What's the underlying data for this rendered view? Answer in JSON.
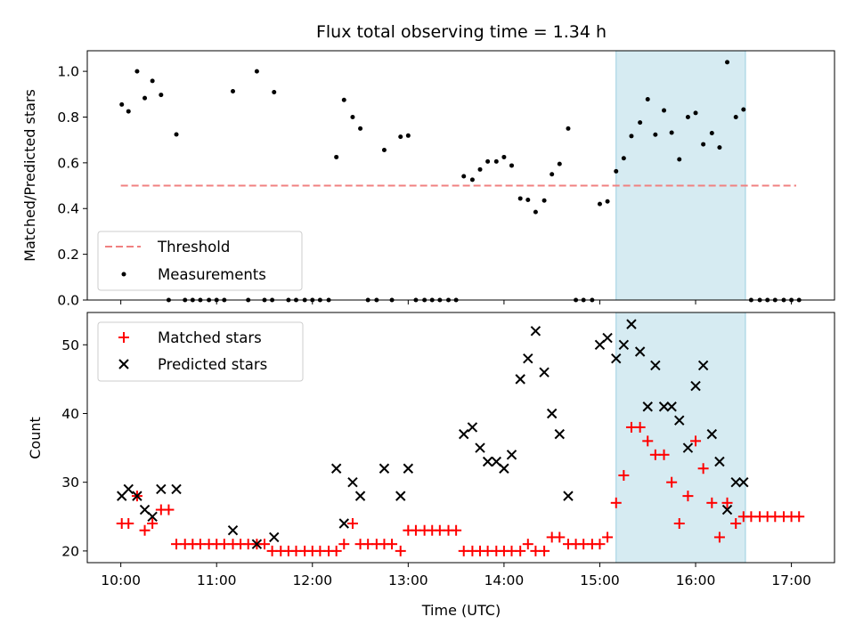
{
  "chart_data": [
    {
      "type": "scatter",
      "title": "Flux total observing time = 1.34 h",
      "ylabel": "Matched/Predicted stars",
      "xlabel": "",
      "xlim": [
        9.65,
        17.45
      ],
      "ylim": [
        0.0,
        1.09
      ],
      "yticks": [
        0.0,
        0.2,
        0.4,
        0.6,
        0.8,
        1.0
      ],
      "ytick_labels": [
        "0.0",
        "0.2",
        "0.4",
        "0.6",
        "0.8",
        "1.0"
      ],
      "shaded_region": [
        15.17,
        16.52
      ],
      "shade_color": "#add8e6",
      "threshold": {
        "label": "Threshold",
        "value": 0.5,
        "x_range": [
          10.0,
          17.05
        ],
        "color": "#f08080"
      },
      "measurements_label": "Measurements",
      "measurements": [
        [
          10.01,
          0.855
        ],
        [
          10.08,
          0.825
        ],
        [
          10.17,
          1.0
        ],
        [
          10.25,
          0.883
        ],
        [
          10.33,
          0.958
        ],
        [
          10.42,
          0.897
        ],
        [
          10.58,
          0.724
        ],
        [
          10.5,
          0.0
        ],
        [
          10.67,
          0.0
        ],
        [
          10.75,
          0.0
        ],
        [
          10.83,
          0.0
        ],
        [
          10.92,
          0.0
        ],
        [
          11.0,
          0.0
        ],
        [
          11.08,
          0.0
        ],
        [
          11.17,
          0.913
        ],
        [
          11.33,
          0.0
        ],
        [
          11.42,
          1.0
        ],
        [
          11.58,
          0.0
        ],
        [
          11.5,
          0.0
        ],
        [
          11.6,
          0.909
        ],
        [
          11.75,
          0.0
        ],
        [
          11.83,
          0.0
        ],
        [
          11.92,
          0.0
        ],
        [
          12.0,
          0.0
        ],
        [
          12.08,
          0.0
        ],
        [
          12.17,
          0.0
        ],
        [
          12.25,
          0.625
        ],
        [
          12.33,
          0.875
        ],
        [
          12.42,
          0.8
        ],
        [
          12.5,
          0.75
        ],
        [
          12.58,
          0.0
        ],
        [
          12.67,
          0.0
        ],
        [
          12.75,
          0.656
        ],
        [
          12.83,
          0.0
        ],
        [
          12.92,
          0.714
        ],
        [
          13.0,
          0.719
        ],
        [
          13.08,
          0.0
        ],
        [
          13.17,
          0.0
        ],
        [
          13.25,
          0.0
        ],
        [
          13.33,
          0.0
        ],
        [
          13.42,
          0.0
        ],
        [
          13.5,
          0.0
        ],
        [
          13.58,
          0.541
        ],
        [
          13.67,
          0.526
        ],
        [
          13.75,
          0.571
        ],
        [
          13.83,
          0.606
        ],
        [
          13.92,
          0.606
        ],
        [
          14.0,
          0.625
        ],
        [
          14.08,
          0.588
        ],
        [
          14.17,
          0.444
        ],
        [
          14.25,
          0.438
        ],
        [
          14.33,
          0.385
        ],
        [
          14.42,
          0.435
        ],
        [
          14.5,
          0.55
        ],
        [
          14.58,
          0.595
        ],
        [
          14.67,
          0.75
        ],
        [
          14.75,
          0.0
        ],
        [
          14.83,
          0.0
        ],
        [
          14.92,
          0.0
        ],
        [
          15.0,
          0.42
        ],
        [
          15.08,
          0.431
        ],
        [
          15.17,
          0.563
        ],
        [
          15.25,
          0.62
        ],
        [
          15.33,
          0.717
        ],
        [
          15.42,
          0.776
        ],
        [
          15.5,
          0.878
        ],
        [
          15.58,
          0.723
        ],
        [
          15.67,
          0.829
        ],
        [
          15.75,
          0.732
        ],
        [
          15.83,
          0.615
        ],
        [
          15.92,
          0.8
        ],
        [
          16.0,
          0.818
        ],
        [
          16.08,
          0.681
        ],
        [
          16.17,
          0.73
        ],
        [
          16.25,
          0.667
        ],
        [
          16.33,
          1.04
        ],
        [
          16.42,
          0.8
        ],
        [
          16.5,
          0.833
        ],
        [
          16.58,
          0.0
        ],
        [
          16.67,
          0.0
        ],
        [
          16.75,
          0.0
        ],
        [
          16.83,
          0.0
        ],
        [
          16.92,
          0.0
        ],
        [
          17.0,
          0.0
        ],
        [
          17.08,
          0.0
        ]
      ]
    },
    {
      "type": "scatter",
      "title": "",
      "xlabel": "Time (UTC)",
      "ylabel": "Count",
      "xlim": [
        9.65,
        17.45
      ],
      "ylim": [
        18.3,
        54.7
      ],
      "yticks": [
        20,
        30,
        40,
        50
      ],
      "ytick_labels": [
        "20",
        "30",
        "40",
        "50"
      ],
      "xticks": [
        10,
        11,
        12,
        13,
        14,
        15,
        16,
        17
      ],
      "xtick_labels": [
        "10:00",
        "11:00",
        "12:00",
        "13:00",
        "14:00",
        "15:00",
        "16:00",
        "17:00"
      ],
      "shaded_region": [
        15.17,
        16.52
      ],
      "shade_color": "#add8e6",
      "series": [
        {
          "name": "Matched stars",
          "marker": "+",
          "color": "#ff0000",
          "points": [
            [
              10.01,
              24
            ],
            [
              10.08,
              24
            ],
            [
              10.17,
              28
            ],
            [
              10.25,
              23
            ],
            [
              10.33,
              24
            ],
            [
              10.42,
              26
            ],
            [
              10.5,
              26
            ],
            [
              10.58,
              21
            ],
            [
              10.67,
              21
            ],
            [
              10.75,
              21
            ],
            [
              10.83,
              21
            ],
            [
              10.92,
              21
            ],
            [
              11.0,
              21
            ],
            [
              11.08,
              21
            ],
            [
              11.17,
              21
            ],
            [
              11.25,
              21
            ],
            [
              11.33,
              21
            ],
            [
              11.42,
              21
            ],
            [
              11.5,
              21
            ],
            [
              11.58,
              20
            ],
            [
              11.67,
              20
            ],
            [
              11.75,
              20
            ],
            [
              11.83,
              20
            ],
            [
              11.92,
              20
            ],
            [
              12.0,
              20
            ],
            [
              12.08,
              20
            ],
            [
              12.17,
              20
            ],
            [
              12.25,
              20
            ],
            [
              12.33,
              21
            ],
            [
              12.42,
              24
            ],
            [
              12.5,
              21
            ],
            [
              12.58,
              21
            ],
            [
              12.67,
              21
            ],
            [
              12.75,
              21
            ],
            [
              12.83,
              21
            ],
            [
              12.92,
              20
            ],
            [
              13.0,
              23
            ],
            [
              13.08,
              23
            ],
            [
              13.17,
              23
            ],
            [
              13.25,
              23
            ],
            [
              13.33,
              23
            ],
            [
              13.42,
              23
            ],
            [
              13.5,
              23
            ],
            [
              13.58,
              20
            ],
            [
              13.67,
              20
            ],
            [
              13.75,
              20
            ],
            [
              13.83,
              20
            ],
            [
              13.92,
              20
            ],
            [
              14.0,
              20
            ],
            [
              14.08,
              20
            ],
            [
              14.17,
              20
            ],
            [
              14.25,
              21
            ],
            [
              14.33,
              20
            ],
            [
              14.42,
              20
            ],
            [
              14.5,
              22
            ],
            [
              14.58,
              22
            ],
            [
              14.67,
              21
            ],
            [
              14.75,
              21
            ],
            [
              14.83,
              21
            ],
            [
              14.92,
              21
            ],
            [
              15.0,
              21
            ],
            [
              15.08,
              22
            ],
            [
              15.17,
              27
            ],
            [
              15.25,
              31
            ],
            [
              15.33,
              38
            ],
            [
              15.42,
              38
            ],
            [
              15.5,
              36
            ],
            [
              15.58,
              34
            ],
            [
              15.67,
              34
            ],
            [
              15.75,
              30
            ],
            [
              15.83,
              24
            ],
            [
              15.92,
              28
            ],
            [
              16.0,
              36
            ],
            [
              16.08,
              32
            ],
            [
              16.17,
              27
            ],
            [
              16.25,
              22
            ],
            [
              16.33,
              27
            ],
            [
              16.42,
              24
            ],
            [
              16.5,
              25
            ],
            [
              16.58,
              25
            ],
            [
              16.67,
              25
            ],
            [
              16.75,
              25
            ],
            [
              16.83,
              25
            ],
            [
              16.92,
              25
            ],
            [
              17.0,
              25
            ],
            [
              17.08,
              25
            ]
          ]
        },
        {
          "name": "Predicted stars",
          "marker": "x",
          "color": "#000000",
          "points": [
            [
              10.01,
              28
            ],
            [
              10.08,
              29
            ],
            [
              10.17,
              28
            ],
            [
              10.25,
              26
            ],
            [
              10.33,
              25
            ],
            [
              10.42,
              29
            ],
            [
              10.58,
              29
            ],
            [
              11.17,
              23
            ],
            [
              11.42,
              21
            ],
            [
              11.6,
              22
            ],
            [
              12.25,
              32
            ],
            [
              12.33,
              24
            ],
            [
              12.42,
              30
            ],
            [
              12.5,
              28
            ],
            [
              12.75,
              32
            ],
            [
              12.92,
              28
            ],
            [
              13.0,
              32
            ],
            [
              13.58,
              37
            ],
            [
              13.67,
              38
            ],
            [
              13.75,
              35
            ],
            [
              13.83,
              33
            ],
            [
              13.92,
              33
            ],
            [
              14.0,
              32
            ],
            [
              14.08,
              34
            ],
            [
              14.17,
              45
            ],
            [
              14.25,
              48
            ],
            [
              14.33,
              52
            ],
            [
              14.42,
              46
            ],
            [
              14.5,
              40
            ],
            [
              14.58,
              37
            ],
            [
              14.67,
              28
            ],
            [
              15.0,
              50
            ],
            [
              15.08,
              51
            ],
            [
              15.17,
              48
            ],
            [
              15.25,
              50
            ],
            [
              15.33,
              53
            ],
            [
              15.42,
              49
            ],
            [
              15.5,
              41
            ],
            [
              15.58,
              47
            ],
            [
              15.67,
              41
            ],
            [
              15.75,
              41
            ],
            [
              15.83,
              39
            ],
            [
              15.92,
              35
            ],
            [
              16.0,
              44
            ],
            [
              16.08,
              47
            ],
            [
              16.17,
              37
            ],
            [
              16.25,
              33
            ],
            [
              16.33,
              26
            ],
            [
              16.42,
              30
            ],
            [
              16.5,
              30
            ]
          ]
        }
      ]
    }
  ]
}
